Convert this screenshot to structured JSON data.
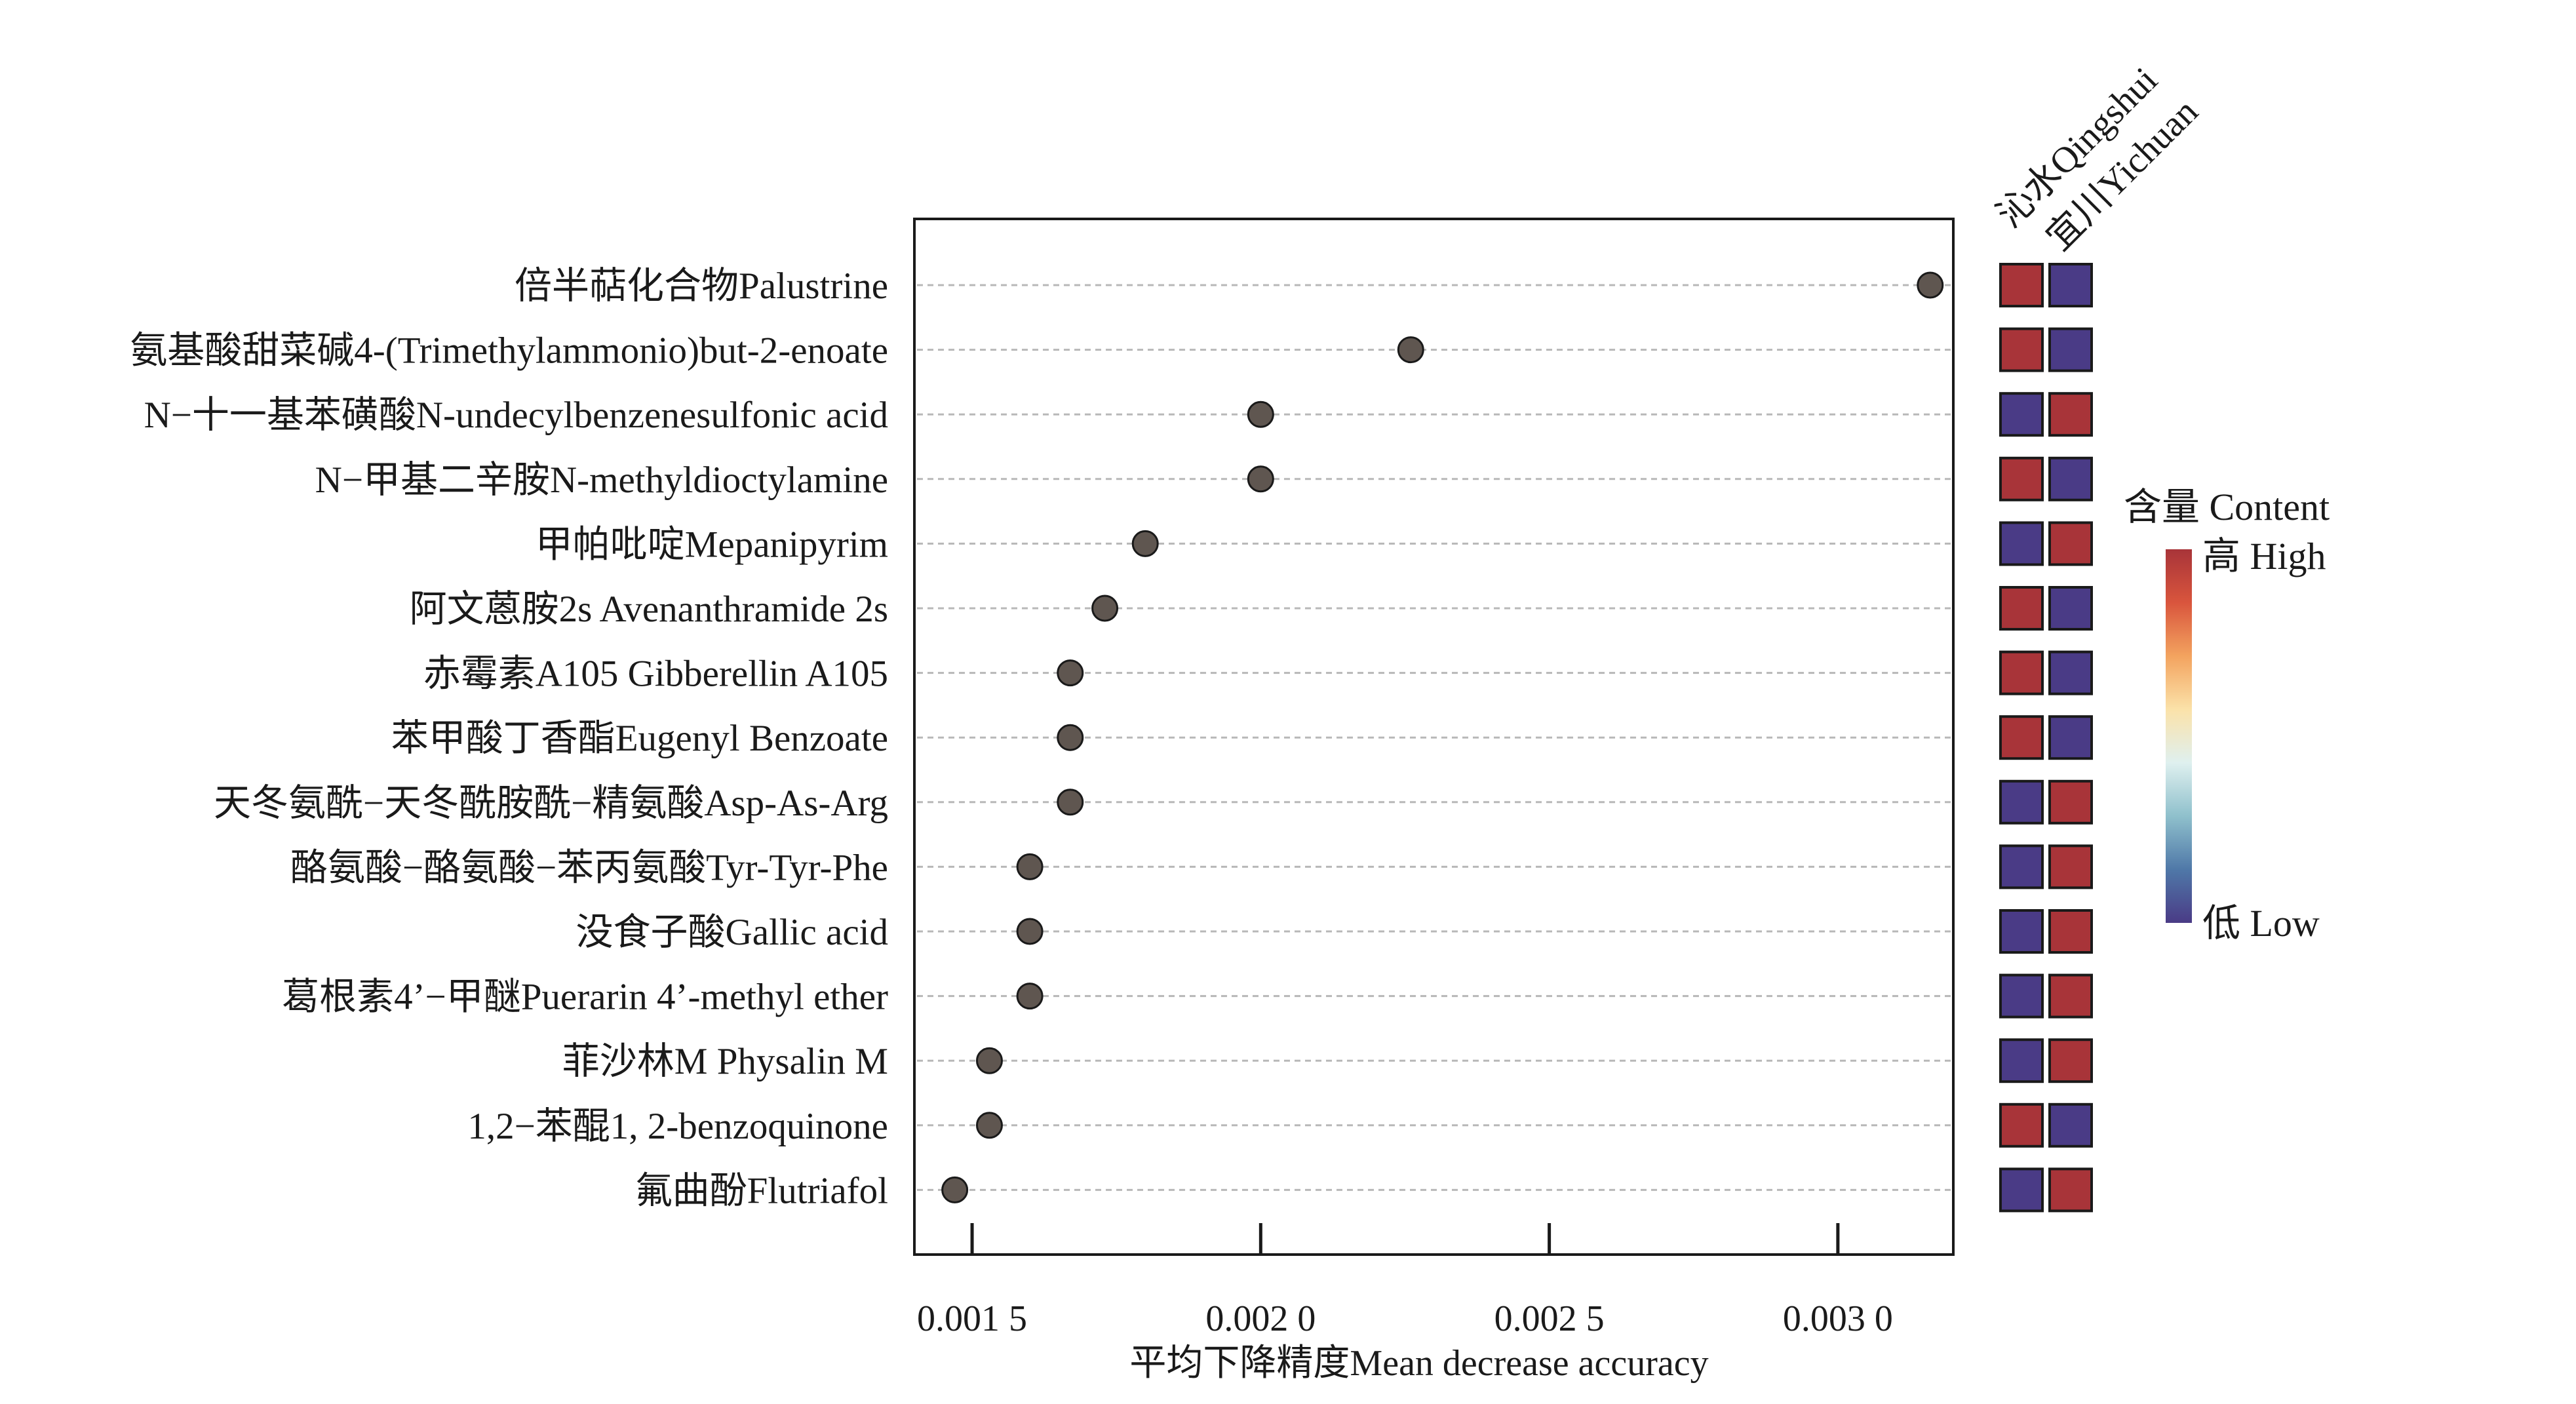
{
  "chart_data": {
    "type": "dot",
    "xlabel": "平均下降精度Mean decrease accuracy",
    "xlim": [
      0.0014,
      0.0032
    ],
    "xticks": [
      0.0015,
      0.002,
      0.0025,
      0.003
    ],
    "xtick_labels": [
      "0.001 5",
      "0.002 0",
      "0.002 5",
      "0.003 0"
    ],
    "categories": [
      "倍半萜化合物Palustrine",
      "氨基酸甜菜碱4-(Trimethylammonio)but-2-enoate",
      "N−十一基苯磺酸N-undecylbenzenesulfonic acid",
      "N−甲基二辛胺N-methyldioctylamine",
      "甲帕吡啶Mepanipyrim",
      "阿文蒽胺2s Avenanthramide 2s",
      "赤霉素A105 Gibberellin A105",
      "苯甲酸丁香酯Eugenyl Benzoate",
      "天冬氨酰−天冬酰胺酰−精氨酸Asp-As-Arg",
      "酪氨酸−酪氨酸−苯丙氨酸Tyr-Tyr-Phe",
      "没食子酸Gallic acid",
      "葛根素4’−甲醚Puerarin 4’-methyl ether",
      "菲沙林M Physalin M",
      "1,2−苯醌1, 2-benzoquinone",
      "氟曲酚Flutriafol"
    ],
    "values": [
      0.00316,
      0.00226,
      0.002,
      0.002,
      0.0018,
      0.00173,
      0.00167,
      0.00167,
      0.00167,
      0.0016,
      0.0016,
      0.0016,
      0.00153,
      0.00153,
      0.00147
    ],
    "heatmap": {
      "columns": [
        "沁水Qingshui",
        "宜川Yichuan"
      ],
      "levels": [
        [
          "high",
          "low"
        ],
        [
          "high",
          "low"
        ],
        [
          "low",
          "high"
        ],
        [
          "high",
          "low"
        ],
        [
          "low",
          "high"
        ],
        [
          "high",
          "low"
        ],
        [
          "high",
          "low"
        ],
        [
          "high",
          "low"
        ],
        [
          "low",
          "high"
        ],
        [
          "low",
          "high"
        ],
        [
          "low",
          "high"
        ],
        [
          "low",
          "high"
        ],
        [
          "low",
          "high"
        ],
        [
          "high",
          "low"
        ],
        [
          "low",
          "high"
        ]
      ]
    },
    "legend": {
      "title": "含量 Content",
      "high_label": "高 High",
      "low_label": "低 Low"
    }
  },
  "colors": {
    "high": "#a83439",
    "low": "#4a3b86",
    "dot": "#5f5650",
    "gradient": [
      "#a83439",
      "#d9553d",
      "#f3a35f",
      "#fbe2a9",
      "#dff0ef",
      "#8fc0cc",
      "#4f78a8",
      "#4a3b86"
    ]
  }
}
